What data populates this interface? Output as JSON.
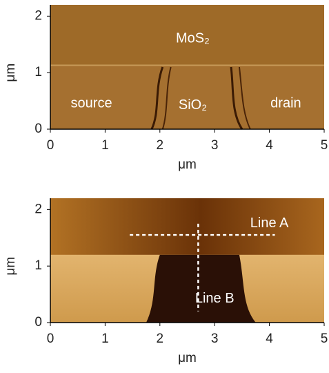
{
  "chart_data": [
    {
      "type": "image",
      "xlabel": "μm",
      "ylabel": "μm",
      "xlim": [
        0,
        5
      ],
      "ylim": [
        0,
        2.2
      ],
      "xticks": [
        0,
        1,
        2,
        3,
        4,
        5
      ],
      "yticks": [
        0,
        1,
        2
      ],
      "annotations": [
        "MoS₂",
        "source",
        "SiO₂",
        "drain"
      ]
    },
    {
      "type": "image",
      "xlabel": "μm",
      "ylabel": "μm",
      "xlim": [
        0,
        5
      ],
      "ylim": [
        0,
        2.2
      ],
      "xticks": [
        0,
        1,
        2,
        3,
        4,
        5
      ],
      "yticks": [
        0,
        1,
        2
      ],
      "annotations": [
        "Line A",
        "Line B"
      ]
    }
  ]
}
